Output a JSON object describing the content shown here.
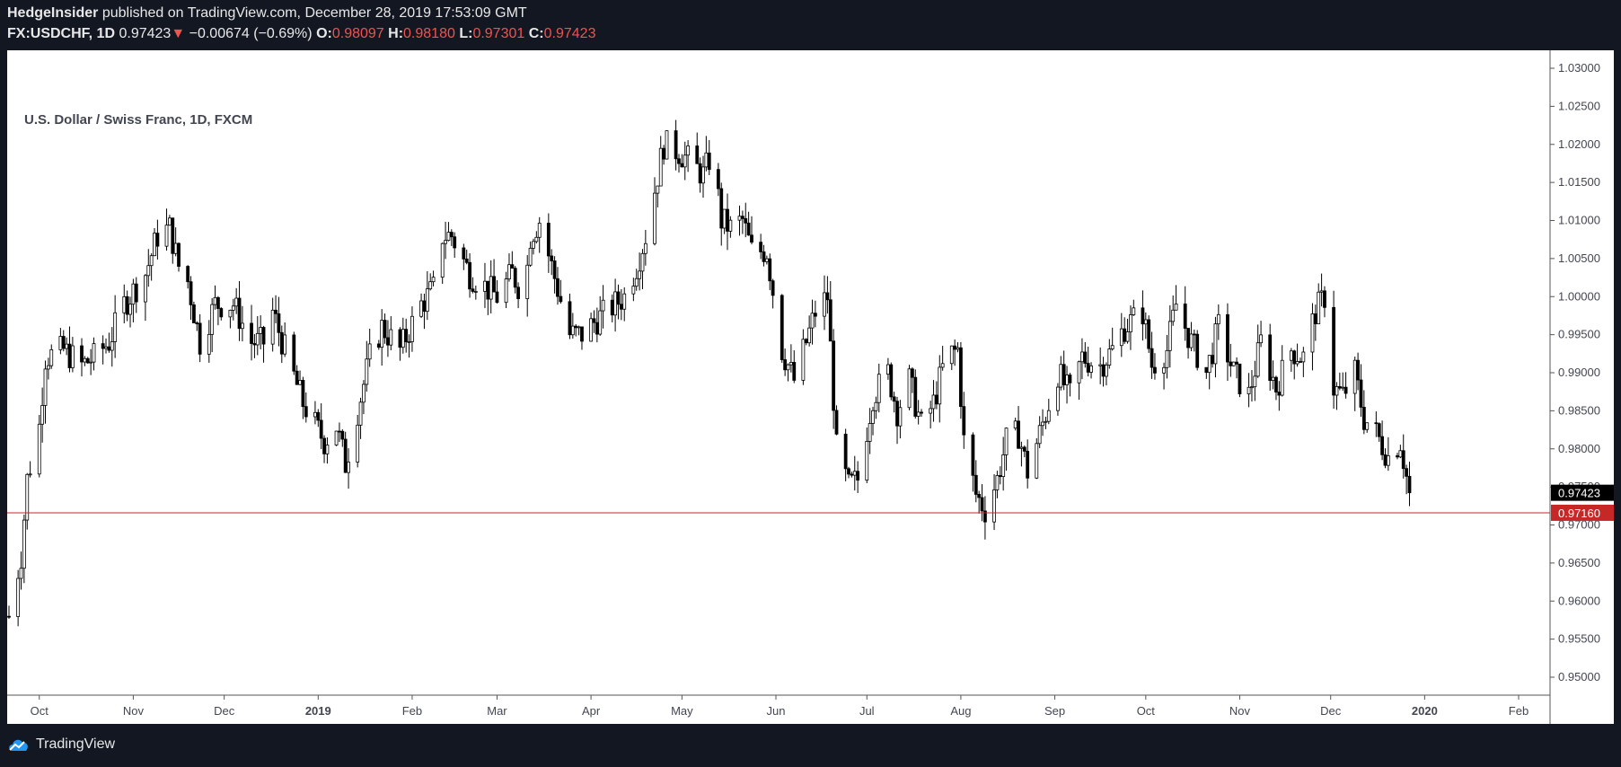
{
  "header": {
    "publisher": "HedgeInsider",
    "published_text": "published on TradingView.com, December 28, 2019 17:53:09 GMT",
    "symbol": "FX:USDCHF, 1D",
    "last": "0.97423",
    "arrow": "▼",
    "change": "−0.00674 (−0.69%)",
    "open_label": "O:",
    "open": "0.98097",
    "high_label": "H:",
    "high": "0.98180",
    "low_label": "L:",
    "low": "0.97301",
    "close_label": "C:",
    "close": "0.97423"
  },
  "footer": {
    "brand": "TradingView",
    "logo_icon": "tradingview-cloud-icon"
  },
  "colors": {
    "down": "#ef5350",
    "line": "#c62828",
    "candle": "#000000",
    "background": "#131722"
  },
  "chart_data": {
    "type": "candlestick",
    "title": "U.S. Dollar / Swiss Franc, 1D, FXCM",
    "y_ticks": [
      "1.03000",
      "1.02500",
      "1.02000",
      "1.01500",
      "1.01000",
      "1.00500",
      "1.00000",
      "0.99500",
      "0.99000",
      "0.98500",
      "0.98000",
      "0.97500",
      "0.97000",
      "0.96500",
      "0.96000",
      "0.95500",
      "0.95000"
    ],
    "x_ticks": [
      {
        "label": "Oct",
        "date": "2018-10-01",
        "bold": false
      },
      {
        "label": "Nov",
        "date": "2018-11-01",
        "bold": false
      },
      {
        "label": "Dec",
        "date": "2018-12-01",
        "bold": false
      },
      {
        "label": "2019",
        "date": "2019-01-01",
        "bold": true
      },
      {
        "label": "Feb",
        "date": "2019-02-01",
        "bold": false
      },
      {
        "label": "Mar",
        "date": "2019-03-01",
        "bold": false
      },
      {
        "label": "Apr",
        "date": "2019-04-01",
        "bold": false
      },
      {
        "label": "May",
        "date": "2019-05-01",
        "bold": false
      },
      {
        "label": "Jun",
        "date": "2019-06-01",
        "bold": false
      },
      {
        "label": "Jul",
        "date": "2019-07-01",
        "bold": false
      },
      {
        "label": "Aug",
        "date": "2019-08-01",
        "bold": false
      },
      {
        "label": "Sep",
        "date": "2019-09-01",
        "bold": false
      },
      {
        "label": "Oct",
        "date": "2019-10-01",
        "bold": false
      },
      {
        "label": "Nov",
        "date": "2019-11-01",
        "bold": false
      },
      {
        "label": "Dec",
        "date": "2019-12-01",
        "bold": false
      },
      {
        "label": "2020",
        "date": "2020-01-01",
        "bold": true
      },
      {
        "label": "Feb",
        "date": "2020-02-01",
        "bold": false
      }
    ],
    "last_price": {
      "value": 0.97423,
      "label": "0.97423"
    },
    "horizontal_line": {
      "value": 0.9716,
      "label": "0.97160"
    },
    "closes": [
      {
        "date": "2018-09-21",
        "close": 0.958
      },
      {
        "date": "2018-09-25",
        "close": 0.966
      },
      {
        "date": "2018-09-27",
        "close": 0.976
      },
      {
        "date": "2018-10-01",
        "close": 0.983
      },
      {
        "date": "2018-10-03",
        "close": 0.992
      },
      {
        "date": "2018-10-09",
        "close": 0.993
      },
      {
        "date": "2018-10-15",
        "close": 0.991
      },
      {
        "date": "2018-10-19",
        "close": 0.992
      },
      {
        "date": "2018-10-24",
        "close": 0.994
      },
      {
        "date": "2018-10-29",
        "close": 0.999
      },
      {
        "date": "2018-11-05",
        "close": 1.003
      },
      {
        "date": "2018-11-09",
        "close": 1.008
      },
      {
        "date": "2018-11-13",
        "close": 1.009
      },
      {
        "date": "2018-11-16",
        "close": 1.004
      },
      {
        "date": "2018-11-19",
        "close": 1.002
      },
      {
        "date": "2018-11-21",
        "close": 0.998
      },
      {
        "date": "2018-11-23",
        "close": 0.994
      },
      {
        "date": "2018-11-28",
        "close": 0.999
      },
      {
        "date": "2018-12-04",
        "close": 0.999
      },
      {
        "date": "2018-12-10",
        "close": 0.994
      },
      {
        "date": "2018-12-14",
        "close": 0.994
      },
      {
        "date": "2018-12-17",
        "close": 0.998
      },
      {
        "date": "2018-12-21",
        "close": 0.993
      },
      {
        "date": "2018-12-27",
        "close": 0.986
      },
      {
        "date": "2019-01-03",
        "close": 0.981
      },
      {
        "date": "2019-01-07",
        "close": 0.983
      },
      {
        "date": "2019-01-10",
        "close": 0.978
      },
      {
        "date": "2019-01-14",
        "close": 0.985
      },
      {
        "date": "2019-01-18",
        "close": 0.992
      },
      {
        "date": "2019-01-22",
        "close": 0.996
      },
      {
        "date": "2019-01-28",
        "close": 0.993
      },
      {
        "date": "2019-02-04",
        "close": 0.999
      },
      {
        "date": "2019-02-08",
        "close": 1.001
      },
      {
        "date": "2019-02-11",
        "close": 1.008
      },
      {
        "date": "2019-02-14",
        "close": 1.008
      },
      {
        "date": "2019-02-20",
        "close": 1.003
      },
      {
        "date": "2019-02-26",
        "close": 1.001
      },
      {
        "date": "2019-03-01",
        "close": 1.0
      },
      {
        "date": "2019-03-06",
        "close": 1.003
      },
      {
        "date": "2019-03-10",
        "close": 1.0
      },
      {
        "date": "2019-03-12",
        "close": 1.008
      },
      {
        "date": "2019-03-15",
        "close": 1.01
      },
      {
        "date": "2019-03-19",
        "close": 1.004
      },
      {
        "date": "2019-03-25",
        "close": 0.995
      },
      {
        "date": "2019-03-29",
        "close": 0.995
      },
      {
        "date": "2019-04-03",
        "close": 0.997
      },
      {
        "date": "2019-04-09",
        "close": 0.999
      },
      {
        "date": "2019-04-12",
        "close": 1.0
      },
      {
        "date": "2019-04-16",
        "close": 1.004
      },
      {
        "date": "2019-04-19",
        "close": 1.008
      },
      {
        "date": "2019-04-22",
        "close": 1.014
      },
      {
        "date": "2019-04-25",
        "close": 1.02
      },
      {
        "date": "2019-04-30",
        "close": 1.019
      },
      {
        "date": "2019-05-03",
        "close": 1.018
      },
      {
        "date": "2019-05-08",
        "close": 1.016
      },
      {
        "date": "2019-05-11",
        "close": 1.019
      },
      {
        "date": "2019-05-14",
        "close": 1.01
      },
      {
        "date": "2019-05-17",
        "close": 1.009
      },
      {
        "date": "2019-05-21",
        "close": 1.01
      },
      {
        "date": "2019-05-24",
        "close": 1.006
      },
      {
        "date": "2019-05-29",
        "close": 1.006
      },
      {
        "date": "2019-06-03",
        "close": 0.993
      },
      {
        "date": "2019-06-07",
        "close": 0.989
      },
      {
        "date": "2019-06-11",
        "close": 0.994
      },
      {
        "date": "2019-06-14",
        "close": 0.998
      },
      {
        "date": "2019-06-18",
        "close": 1.0
      },
      {
        "date": "2019-06-21",
        "close": 0.98
      },
      {
        "date": "2019-06-25",
        "close": 0.975
      },
      {
        "date": "2019-06-28",
        "close": 0.976
      },
      {
        "date": "2019-07-03",
        "close": 0.987
      },
      {
        "date": "2019-07-08",
        "close": 0.99
      },
      {
        "date": "2019-07-11",
        "close": 0.985
      },
      {
        "date": "2019-07-15",
        "close": 0.989
      },
      {
        "date": "2019-07-19",
        "close": 0.983
      },
      {
        "date": "2019-07-23",
        "close": 0.986
      },
      {
        "date": "2019-07-27",
        "close": 0.992
      },
      {
        "date": "2019-07-31",
        "close": 0.993
      },
      {
        "date": "2019-08-02",
        "close": 0.981
      },
      {
        "date": "2019-08-06",
        "close": 0.974
      },
      {
        "date": "2019-08-09",
        "close": 0.972
      },
      {
        "date": "2019-08-13",
        "close": 0.976
      },
      {
        "date": "2019-08-16",
        "close": 0.981
      },
      {
        "date": "2019-08-20",
        "close": 0.982
      },
      {
        "date": "2019-08-23",
        "close": 0.977
      },
      {
        "date": "2019-08-27",
        "close": 0.982
      },
      {
        "date": "2019-09-02",
        "close": 0.99
      },
      {
        "date": "2019-09-06",
        "close": 0.987
      },
      {
        "date": "2019-09-10",
        "close": 0.992
      },
      {
        "date": "2019-09-16",
        "close": 0.991
      },
      {
        "date": "2019-09-20",
        "close": 0.993
      },
      {
        "date": "2019-09-24",
        "close": 0.996
      },
      {
        "date": "2019-09-30",
        "close": 0.998
      },
      {
        "date": "2019-10-03",
        "close": 0.991
      },
      {
        "date": "2019-10-08",
        "close": 0.993
      },
      {
        "date": "2019-10-11",
        "close": 0.999
      },
      {
        "date": "2019-10-16",
        "close": 0.994
      },
      {
        "date": "2019-10-21",
        "close": 0.99
      },
      {
        "date": "2019-10-25",
        "close": 0.996
      },
      {
        "date": "2019-10-30",
        "close": 0.99
      },
      {
        "date": "2019-11-04",
        "close": 0.987
      },
      {
        "date": "2019-11-08",
        "close": 0.994
      },
      {
        "date": "2019-11-13",
        "close": 0.988
      },
      {
        "date": "2019-11-18",
        "close": 0.993
      },
      {
        "date": "2019-11-22",
        "close": 0.992
      },
      {
        "date": "2019-11-26",
        "close": 0.998
      },
      {
        "date": "2019-11-29",
        "close": 1.0
      },
      {
        "date": "2019-12-02",
        "close": 0.988
      },
      {
        "date": "2019-12-05",
        "close": 0.987
      },
      {
        "date": "2019-12-09",
        "close": 0.99
      },
      {
        "date": "2019-12-12",
        "close": 0.984
      },
      {
        "date": "2019-12-16",
        "close": 0.982
      },
      {
        "date": "2019-12-20",
        "close": 0.979
      },
      {
        "date": "2019-12-24",
        "close": 0.981
      },
      {
        "date": "2019-12-27",
        "close": 0.974
      }
    ]
  }
}
